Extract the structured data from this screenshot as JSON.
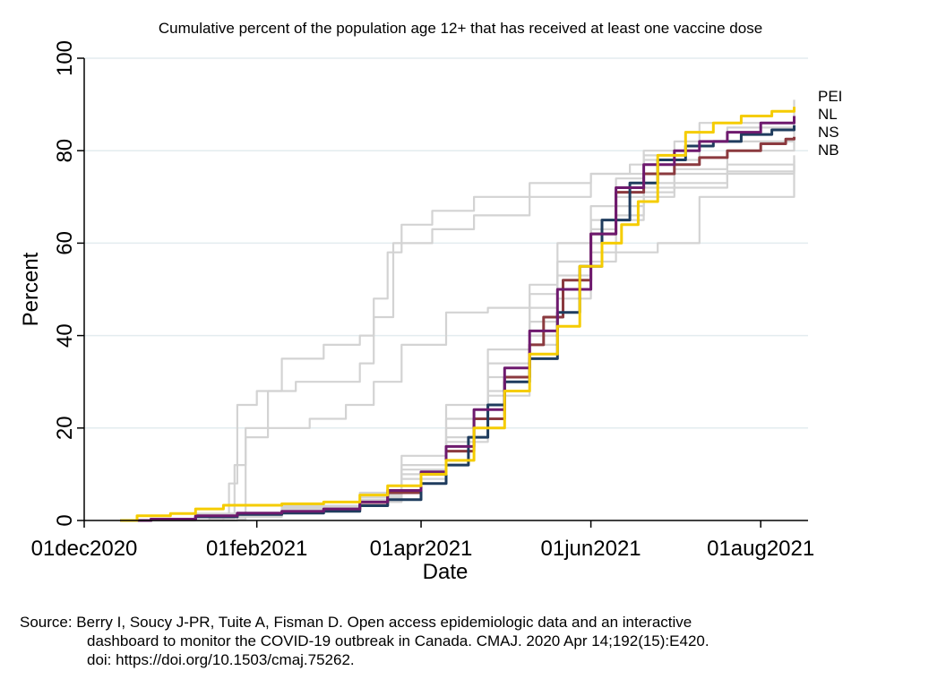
{
  "chart_data": {
    "type": "line",
    "title": "Cumulative percent of the population age 12+ that has received at least one vaccine dose",
    "xlabel": "Date",
    "ylabel": "Percent",
    "xlim": [
      "2020-12-01",
      "2021-08-18"
    ],
    "ylim": [
      0,
      100
    ],
    "x_ticks": [
      {
        "date": "2020-12-01",
        "label": "01dec2020"
      },
      {
        "date": "2021-02-01",
        "label": "01feb2021"
      },
      {
        "date": "2021-04-01",
        "label": "01apr2021"
      },
      {
        "date": "2021-06-01",
        "label": "01jun2021"
      },
      {
        "date": "2021-08-01",
        "label": "01aug2021"
      }
    ],
    "y_ticks": [
      0,
      20,
      40,
      60,
      80,
      100
    ],
    "grid": true,
    "highlight_series": [
      {
        "name": "NB",
        "color": "#8b3a3f",
        "points": [
          [
            "2020-12-14",
            0
          ],
          [
            "2020-12-25",
            0.3
          ],
          [
            "2021-01-10",
            0.8
          ],
          [
            "2021-01-25",
            1.5
          ],
          [
            "2021-02-10",
            1.9
          ],
          [
            "2021-02-25",
            2.3
          ],
          [
            "2021-03-10",
            3.3
          ],
          [
            "2021-03-20",
            6
          ],
          [
            "2021-04-01",
            10
          ],
          [
            "2021-04-10",
            15
          ],
          [
            "2021-04-20",
            22
          ],
          [
            "2021-05-01",
            31
          ],
          [
            "2021-05-10",
            38
          ],
          [
            "2021-05-15",
            44
          ],
          [
            "2021-05-22",
            52
          ],
          [
            "2021-06-01",
            62
          ],
          [
            "2021-06-10",
            71
          ],
          [
            "2021-06-20",
            75
          ],
          [
            "2021-07-01",
            77
          ],
          [
            "2021-07-10",
            78.5
          ],
          [
            "2021-07-20",
            80
          ],
          [
            "2021-08-01",
            81.5
          ],
          [
            "2021-08-10",
            82.5
          ],
          [
            "2021-08-13",
            83
          ]
        ]
      },
      {
        "name": "NS",
        "color": "#1f3c5e",
        "points": [
          [
            "2020-12-14",
            0
          ],
          [
            "2020-12-25",
            0.3
          ],
          [
            "2021-01-10",
            0.8
          ],
          [
            "2021-01-25",
            1.3
          ],
          [
            "2021-02-10",
            1.6
          ],
          [
            "2021-02-25",
            2
          ],
          [
            "2021-03-10",
            3.2
          ],
          [
            "2021-03-20",
            4.5
          ],
          [
            "2021-04-01",
            8
          ],
          [
            "2021-04-10",
            12
          ],
          [
            "2021-04-18",
            18
          ],
          [
            "2021-04-25",
            25
          ],
          [
            "2021-05-01",
            30
          ],
          [
            "2021-05-10",
            35
          ],
          [
            "2021-05-20",
            45
          ],
          [
            "2021-05-28",
            55
          ],
          [
            "2021-06-05",
            65
          ],
          [
            "2021-06-15",
            73
          ],
          [
            "2021-06-25",
            78
          ],
          [
            "2021-07-05",
            81
          ],
          [
            "2021-07-15",
            82
          ],
          [
            "2021-07-25",
            83.5
          ],
          [
            "2021-08-05",
            84.5
          ],
          [
            "2021-08-13",
            85.5
          ]
        ]
      },
      {
        "name": "NL",
        "color": "#6e1a6e",
        "points": [
          [
            "2020-12-14",
            0
          ],
          [
            "2020-12-25",
            0.3
          ],
          [
            "2021-01-10",
            1
          ],
          [
            "2021-01-25",
            1.6
          ],
          [
            "2021-02-10",
            2
          ],
          [
            "2021-02-25",
            2.5
          ],
          [
            "2021-03-10",
            4
          ],
          [
            "2021-03-20",
            6.5
          ],
          [
            "2021-04-01",
            10.5
          ],
          [
            "2021-04-10",
            16
          ],
          [
            "2021-04-20",
            24
          ],
          [
            "2021-05-01",
            33
          ],
          [
            "2021-05-10",
            41
          ],
          [
            "2021-05-20",
            50
          ],
          [
            "2021-06-01",
            62
          ],
          [
            "2021-06-10",
            72
          ],
          [
            "2021-06-20",
            77
          ],
          [
            "2021-07-01",
            80
          ],
          [
            "2021-07-10",
            82
          ],
          [
            "2021-07-20",
            84
          ],
          [
            "2021-08-01",
            86
          ],
          [
            "2021-08-13",
            87.5
          ]
        ]
      },
      {
        "name": "PEI",
        "color": "#f5cc00",
        "points": [
          [
            "2020-12-14",
            0
          ],
          [
            "2020-12-20",
            1
          ],
          [
            "2021-01-01",
            1.5
          ],
          [
            "2021-01-10",
            2.5
          ],
          [
            "2021-01-20",
            3.3
          ],
          [
            "2021-02-10",
            3.6
          ],
          [
            "2021-02-25",
            4
          ],
          [
            "2021-03-10",
            5.5
          ],
          [
            "2021-03-20",
            7.5
          ],
          [
            "2021-04-01",
            10
          ],
          [
            "2021-04-10",
            13
          ],
          [
            "2021-04-20",
            20
          ],
          [
            "2021-05-01",
            28
          ],
          [
            "2021-05-10",
            36
          ],
          [
            "2021-05-20",
            42
          ],
          [
            "2021-05-28",
            55
          ],
          [
            "2021-06-05",
            60
          ],
          [
            "2021-06-12",
            64
          ],
          [
            "2021-06-18",
            69
          ],
          [
            "2021-06-25",
            79
          ],
          [
            "2021-07-05",
            84
          ],
          [
            "2021-07-15",
            86
          ],
          [
            "2021-07-25",
            87.5
          ],
          [
            "2021-08-05",
            88.5
          ],
          [
            "2021-08-13",
            89.5
          ]
        ]
      }
    ],
    "other_series": [
      {
        "color": "#d3d3d3",
        "points": [
          [
            "2020-12-14",
            0
          ],
          [
            "2021-01-15",
            0.5
          ],
          [
            "2021-01-22",
            8
          ],
          [
            "2021-01-25",
            25
          ],
          [
            "2021-02-01",
            28
          ],
          [
            "2021-02-10",
            35
          ],
          [
            "2021-02-25",
            38
          ],
          [
            "2021-03-10",
            40
          ],
          [
            "2021-03-15",
            48
          ],
          [
            "2021-03-20",
            58
          ],
          [
            "2021-03-25",
            64
          ],
          [
            "2021-04-05",
            67
          ],
          [
            "2021-04-20",
            70
          ],
          [
            "2021-05-10",
            73
          ],
          [
            "2021-06-01",
            75
          ],
          [
            "2021-06-20",
            80
          ],
          [
            "2021-07-10",
            86
          ],
          [
            "2021-08-13",
            91
          ]
        ]
      },
      {
        "color": "#d3d3d3",
        "points": [
          [
            "2020-12-14",
            0
          ],
          [
            "2021-01-20",
            0.5
          ],
          [
            "2021-01-24",
            12
          ],
          [
            "2021-01-28",
            18
          ],
          [
            "2021-02-05",
            20
          ],
          [
            "2021-02-20",
            22
          ],
          [
            "2021-03-05",
            25
          ],
          [
            "2021-03-15",
            30
          ],
          [
            "2021-03-25",
            38
          ],
          [
            "2021-04-10",
            45
          ],
          [
            "2021-04-25",
            46
          ],
          [
            "2021-05-10",
            51
          ],
          [
            "2021-05-20",
            56
          ],
          [
            "2021-06-01",
            56
          ],
          [
            "2021-06-10",
            58
          ],
          [
            "2021-06-20",
            58
          ],
          [
            "2021-06-25",
            60
          ],
          [
            "2021-07-10",
            70
          ],
          [
            "2021-08-13",
            77
          ]
        ]
      },
      {
        "color": "#d3d3d3",
        "points": [
          [
            "2020-12-14",
            0
          ],
          [
            "2021-01-25",
            0.3
          ],
          [
            "2021-01-28",
            20
          ],
          [
            "2021-02-05",
            28
          ],
          [
            "2021-02-15",
            30
          ],
          [
            "2021-02-25",
            30
          ],
          [
            "2021-03-10",
            34
          ],
          [
            "2021-03-15",
            44
          ],
          [
            "2021-03-22",
            60
          ],
          [
            "2021-04-05",
            63
          ],
          [
            "2021-04-20",
            66
          ],
          [
            "2021-05-10",
            70
          ],
          [
            "2021-06-01",
            75
          ],
          [
            "2021-06-15",
            77
          ],
          [
            "2021-06-20",
            78
          ],
          [
            "2021-07-10",
            82
          ],
          [
            "2021-08-13",
            85
          ]
        ]
      },
      {
        "color": "#d3d3d3",
        "points": [
          [
            "2020-12-14",
            0
          ],
          [
            "2021-01-10",
            1
          ],
          [
            "2021-02-10",
            2.5
          ],
          [
            "2021-03-10",
            4.5
          ],
          [
            "2021-03-25",
            10
          ],
          [
            "2021-04-10",
            18
          ],
          [
            "2021-04-25",
            28
          ],
          [
            "2021-05-10",
            40
          ],
          [
            "2021-05-20",
            50
          ],
          [
            "2021-06-01",
            60
          ],
          [
            "2021-06-10",
            65
          ],
          [
            "2021-06-20",
            70
          ],
          [
            "2021-07-01",
            72
          ],
          [
            "2021-07-20",
            75
          ],
          [
            "2021-08-13",
            78
          ]
        ]
      },
      {
        "color": "#d3d3d3",
        "points": [
          [
            "2020-12-14",
            0
          ],
          [
            "2021-01-10",
            1.2
          ],
          [
            "2021-02-10",
            3
          ],
          [
            "2021-03-10",
            5
          ],
          [
            "2021-03-25",
            11
          ],
          [
            "2021-04-10",
            20
          ],
          [
            "2021-04-25",
            31
          ],
          [
            "2021-05-10",
            43
          ],
          [
            "2021-05-20",
            53
          ],
          [
            "2021-06-01",
            63
          ],
          [
            "2021-06-10",
            68
          ],
          [
            "2021-06-20",
            71
          ],
          [
            "2021-07-01",
            73
          ],
          [
            "2021-07-20",
            75.5
          ],
          [
            "2021-08-13",
            77
          ]
        ]
      },
      {
        "color": "#d3d3d3",
        "points": [
          [
            "2020-12-14",
            0
          ],
          [
            "2021-01-10",
            1
          ],
          [
            "2021-02-10",
            2.8
          ],
          [
            "2021-03-10",
            5.5
          ],
          [
            "2021-03-25",
            12
          ],
          [
            "2021-04-10",
            22
          ],
          [
            "2021-04-25",
            34
          ],
          [
            "2021-05-10",
            46
          ],
          [
            "2021-05-20",
            56
          ],
          [
            "2021-06-01",
            65
          ],
          [
            "2021-06-10",
            70
          ],
          [
            "2021-06-20",
            73
          ],
          [
            "2021-07-01",
            75
          ],
          [
            "2021-07-20",
            77
          ],
          [
            "2021-08-13",
            79
          ]
        ]
      },
      {
        "color": "#d3d3d3",
        "points": [
          [
            "2020-12-14",
            0
          ],
          [
            "2021-01-10",
            1.5
          ],
          [
            "2021-02-10",
            3.2
          ],
          [
            "2021-03-10",
            6
          ],
          [
            "2021-03-25",
            14
          ],
          [
            "2021-04-10",
            25
          ],
          [
            "2021-04-25",
            37
          ],
          [
            "2021-05-10",
            49
          ],
          [
            "2021-05-20",
            60
          ],
          [
            "2021-06-01",
            68
          ],
          [
            "2021-06-10",
            74
          ],
          [
            "2021-06-20",
            79
          ],
          [
            "2021-07-01",
            82
          ],
          [
            "2021-07-20",
            85
          ],
          [
            "2021-08-13",
            87
          ]
        ]
      },
      {
        "color": "#d3d3d3",
        "points": [
          [
            "2020-12-14",
            0
          ],
          [
            "2021-01-10",
            0.8
          ],
          [
            "2021-02-10",
            2
          ],
          [
            "2021-03-10",
            4
          ],
          [
            "2021-03-25",
            9
          ],
          [
            "2021-04-10",
            17
          ],
          [
            "2021-04-25",
            27
          ],
          [
            "2021-05-10",
            38
          ],
          [
            "2021-05-20",
            48
          ],
          [
            "2021-06-01",
            58
          ],
          [
            "2021-06-10",
            66
          ],
          [
            "2021-06-20",
            72
          ],
          [
            "2021-07-01",
            76
          ],
          [
            "2021-07-20",
            80
          ],
          [
            "2021-08-13",
            83
          ]
        ]
      }
    ]
  },
  "source": {
    "line1": "Source: Berry I, Soucy J-PR, Tuite A, Fisman D. Open access epidemiologic data and an interactive",
    "line2": "dashboard to monitor the COVID-19 outbreak in Canada. CMAJ. 2020 Apr 14;192(15):E420.",
    "line3": "doi: https://doi.org/10.1503/cmaj.75262."
  }
}
